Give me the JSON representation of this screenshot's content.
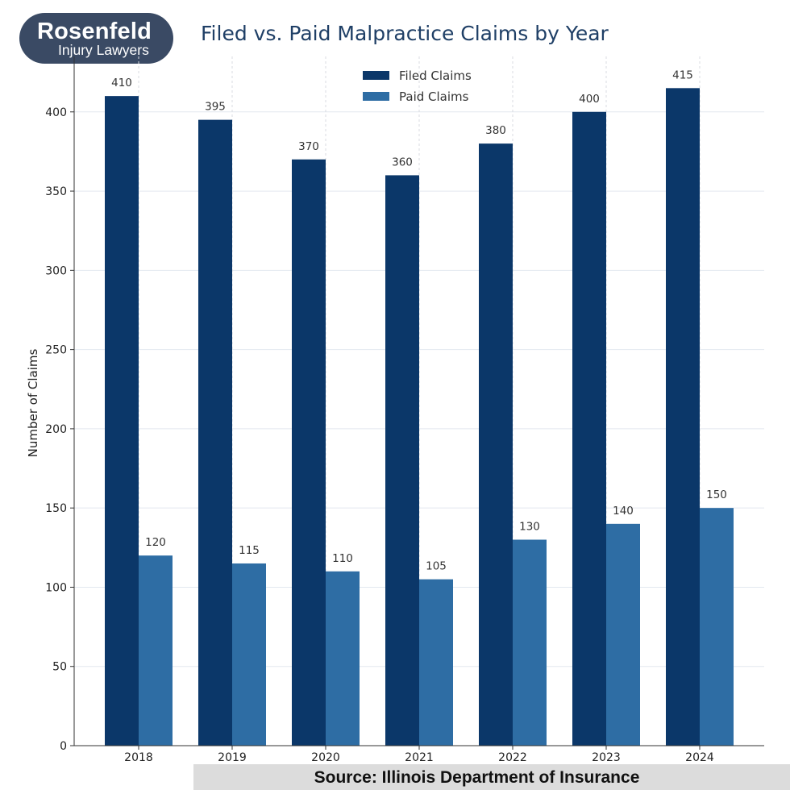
{
  "logo": {
    "name": "Rosenfeld",
    "tagline": "Injury Lawyers"
  },
  "source": "Source: Illinois Department of Insurance",
  "chart_data": {
    "type": "bar",
    "title": "Filed vs. Paid Malpractice Claims by Year",
    "xlabel": "",
    "ylabel": "Number of Claims",
    "categories": [
      "2018",
      "2019",
      "2020",
      "2021",
      "2022",
      "2023",
      "2024"
    ],
    "series": [
      {
        "name": "Filed Claims",
        "color": "#0b3769",
        "values": [
          410,
          395,
          370,
          360,
          380,
          400,
          415
        ]
      },
      {
        "name": "Paid Claims",
        "color": "#2e6da4",
        "values": [
          120,
          115,
          110,
          105,
          130,
          140,
          150
        ]
      }
    ],
    "ylim": [
      0,
      435
    ],
    "yticks": [
      0,
      50,
      100,
      150,
      200,
      250,
      300,
      350,
      400
    ],
    "grid": true,
    "legend": "top-center"
  }
}
